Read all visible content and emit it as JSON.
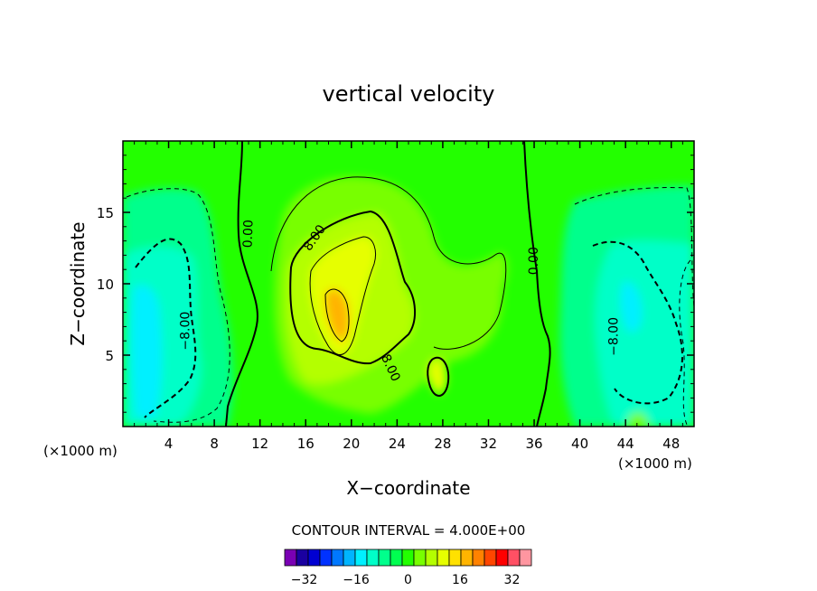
{
  "chart_data": {
    "type": "contour",
    "title": "vertical velocity",
    "xlabel": "X−coordinate",
    "ylabel": "Z−coordinate",
    "x_unit_left": "(×1000 m)",
    "x_unit_right": "(×1000 m)",
    "xlim": [
      0,
      50
    ],
    "ylim": [
      0,
      20
    ],
    "xticks": [
      4,
      8,
      12,
      16,
      20,
      24,
      28,
      32,
      36,
      40,
      44,
      48
    ],
    "yticks": [
      5,
      10,
      15
    ],
    "contour_labels": [
      {
        "text": "0.00",
        "x": 11.0,
        "y": 13.5,
        "rotate": -88
      },
      {
        "text": "8.00",
        "x": 16.8,
        "y": 13.2,
        "rotate": -55
      },
      {
        "text": "8.00",
        "x": 23.4,
        "y": 4.1,
        "rotate": 65
      },
      {
        "text": "0.00",
        "x": 36.0,
        "y": 11.6,
        "rotate": -90
      },
      {
        "text": "−8.00",
        "x": 5.5,
        "y": 6.7,
        "rotate": -90
      },
      {
        "text": "−8.00",
        "x": 43.0,
        "y": 6.3,
        "rotate": -90
      }
    ],
    "contour_interval_label": "CONTOUR INTERVAL = 4.000E+00",
    "colorbar": {
      "min": -36,
      "max": 36,
      "step": 4,
      "tick_labels": [
        "−32",
        "−16",
        "0",
        "16",
        "32"
      ],
      "tick_values": [
        -32,
        -16,
        0,
        16,
        32
      ],
      "colors": [
        "#7a00b4",
        "#1a00a0",
        "#0000d2",
        "#0032ff",
        "#0078ff",
        "#00b4ff",
        "#00f0ff",
        "#00ffc8",
        "#00ff8c",
        "#00ff50",
        "#23ff00",
        "#78ff00",
        "#b4ff00",
        "#e6ff00",
        "#ffe100",
        "#ffb400",
        "#ff8200",
        "#ff4600",
        "#ff0000",
        "#ff5064",
        "#ff96a0"
      ]
    }
  }
}
